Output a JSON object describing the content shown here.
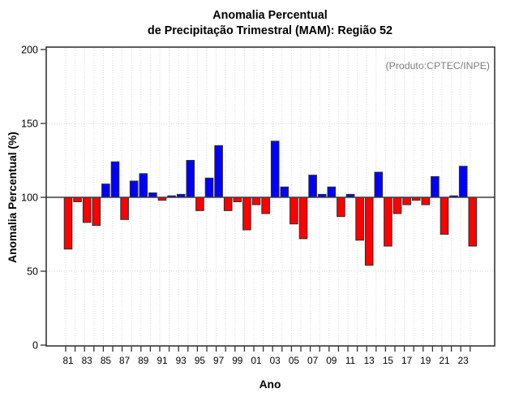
{
  "title": {
    "line1": "Anomalia Percentual",
    "line2": "de Precipitação Trimestral (MAM): Região 52"
  },
  "annotation": {
    "label": "(Produto:CPTEC/INPE)",
    "color": "#7d7d7d"
  },
  "chart_data": {
    "type": "bar",
    "title": "Anomalia Percentual de Precipitação Trimestral (MAM): Região 52",
    "xlabel": "Ano",
    "ylabel": "Anomalia Percentual (%)",
    "baseline": 100,
    "ylim": [
      0,
      200
    ],
    "y_ticks": [
      0,
      50,
      100,
      150,
      200
    ],
    "grid_y": [
      50,
      150
    ],
    "grid": "dotted light-gray vertical line per year, horizontal at 50 and 150",
    "legend_position": "none",
    "x_tick_labels": [
      "81",
      "83",
      "85",
      "87",
      "89",
      "91",
      "93",
      "95",
      "97",
      "99",
      "01",
      "03",
      "05",
      "07",
      "09",
      "11",
      "13",
      "15",
      "17",
      "19",
      "21",
      "23"
    ],
    "years": [
      1981,
      1982,
      1983,
      1984,
      1985,
      1986,
      1987,
      1988,
      1989,
      1990,
      1991,
      1992,
      1993,
      1994,
      1995,
      1996,
      1997,
      1998,
      1999,
      2000,
      2001,
      2002,
      2003,
      2004,
      2005,
      2006,
      2007,
      2008,
      2009,
      2010,
      2011,
      2012,
      2013,
      2014,
      2015,
      2016,
      2017,
      2018,
      2019,
      2020,
      2021,
      2022,
      2023,
      2024
    ],
    "values": [
      65,
      97,
      83,
      81,
      109,
      124,
      85,
      111,
      116,
      103,
      98,
      101,
      102,
      125,
      91,
      113,
      135,
      91,
      97,
      78,
      95,
      89,
      138,
      107,
      82,
      72,
      115,
      102,
      107,
      87,
      102,
      71,
      54,
      117,
      67,
      89,
      95,
      98,
      95,
      114,
      75,
      101,
      121,
      67
    ],
    "colors": {
      "above_baseline": "#0000FE",
      "below_baseline": "#FE0000",
      "bar_border": "#2e2e2e",
      "baseline_line": "#3c3c3c",
      "plot_border": "#1a1a1a",
      "gridline": "#d9d9d9",
      "tick": "#333333"
    }
  }
}
